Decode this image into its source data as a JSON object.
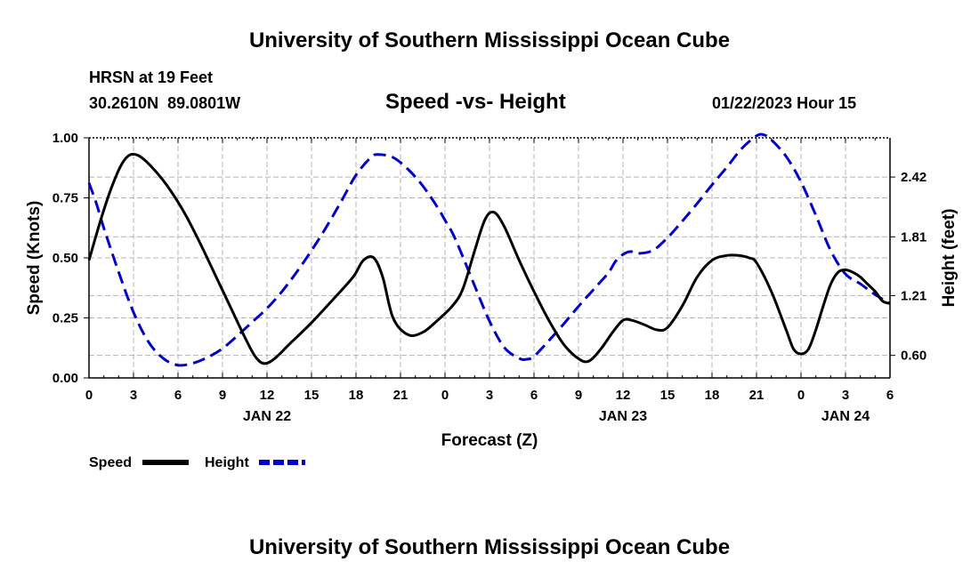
{
  "header": {
    "title": "University of Southern Mississippi Ocean Cube",
    "station_line": "HRSN at 19 Feet",
    "coords_line": "30.2610N  89.0801W",
    "chart_subtitle": "Speed -vs- Height",
    "timestamp": "01/22/2023 Hour 15"
  },
  "footer": {
    "title": "University of Southern Mississippi Ocean Cube"
  },
  "chart_data": {
    "type": "line",
    "title": "Speed -vs- Height",
    "xlabel": "Forecast (Z)",
    "ylabel_left": "Speed (Knots)",
    "ylabel_right": "Height (feet)",
    "xlim": [
      0,
      54
    ],
    "ylim_left": [
      0,
      1.0
    ],
    "ylim_right": [
      0.37,
      2.82
    ],
    "grid": true,
    "x_ticks": [
      0,
      3,
      6,
      9,
      12,
      15,
      18,
      21,
      24,
      27,
      30,
      33,
      36,
      39,
      42,
      45,
      48,
      51,
      54
    ],
    "x_tick_labels": [
      "0",
      "3",
      "6",
      "9",
      "12",
      "15",
      "18",
      "21",
      "0",
      "3",
      "6",
      "9",
      "12",
      "15",
      "18",
      "21",
      "0",
      "3",
      "6"
    ],
    "date_labels": [
      {
        "x": 12,
        "label": "JAN 22"
      },
      {
        "x": 36,
        "label": "JAN 23"
      },
      {
        "x": 51,
        "label": "JAN 24"
      }
    ],
    "y_left_ticks": [
      0,
      0.25,
      0.5,
      0.75,
      1.0
    ],
    "y_left_tick_labels": [
      "0.00",
      "0.25",
      "0.50",
      "0.75",
      "1.00"
    ],
    "y_right_ticks": [
      0.6,
      1.21,
      1.81,
      2.42
    ],
    "y_right_tick_labels": [
      "0.60",
      "1.21",
      "1.81",
      "2.42"
    ],
    "series": [
      {
        "name": "Speed",
        "axis": "left",
        "color": "#000000",
        "dash": "solid",
        "x": [
          0,
          0.8,
          1.5,
          2.2,
          2.8,
          3.5,
          4.5,
          5.5,
          6.5,
          7.5,
          8.5,
          9.5,
          10.5,
          11.2,
          11.8,
          12.5,
          13.5,
          15,
          16.5,
          17.8,
          18.5,
          19.2,
          19.8,
          20.5,
          21.5,
          22.5,
          23.5,
          24.5,
          25.2,
          26,
          26.7,
          27.3,
          28,
          29,
          30,
          31,
          32,
          33,
          33.7,
          34.5,
          35.3,
          36,
          36.6,
          37.5,
          38.3,
          39,
          40,
          41,
          42,
          43,
          43.8,
          44.5,
          45,
          46,
          47,
          47.5,
          48,
          48.5,
          49,
          49.5,
          50,
          50.5,
          51,
          51.5,
          52,
          52.5,
          53,
          53.5,
          54
        ],
        "values": [
          0.49,
          0.66,
          0.79,
          0.89,
          0.93,
          0.92,
          0.86,
          0.78,
          0.68,
          0.56,
          0.43,
          0.3,
          0.17,
          0.09,
          0.06,
          0.08,
          0.14,
          0.23,
          0.33,
          0.42,
          0.49,
          0.5,
          0.42,
          0.25,
          0.18,
          0.19,
          0.24,
          0.3,
          0.37,
          0.53,
          0.66,
          0.69,
          0.63,
          0.49,
          0.36,
          0.24,
          0.14,
          0.08,
          0.07,
          0.12,
          0.19,
          0.24,
          0.24,
          0.22,
          0.2,
          0.21,
          0.3,
          0.42,
          0.49,
          0.51,
          0.51,
          0.5,
          0.48,
          0.36,
          0.2,
          0.12,
          0.1,
          0.12,
          0.2,
          0.3,
          0.39,
          0.44,
          0.45,
          0.44,
          0.42,
          0.39,
          0.36,
          0.32,
          0.31
        ]
      },
      {
        "name": "Height",
        "axis": "right",
        "color": "#0000cc",
        "dash": "dashed",
        "x": [
          0,
          0.5,
          1,
          2,
          3,
          4,
          5,
          6,
          7,
          8,
          9,
          10,
          11,
          12,
          13,
          14,
          15,
          16,
          17,
          18,
          19,
          19.5,
          20.5,
          21.5,
          22.5,
          23.5,
          24,
          24.5,
          25,
          26,
          27,
          28,
          29,
          29.5,
          30,
          31,
          32,
          33,
          34,
          35,
          35.5,
          36,
          36.5,
          37,
          38,
          39,
          40,
          41,
          42,
          43,
          44,
          45,
          45.5,
          46,
          47,
          48,
          49,
          50,
          51,
          52,
          53,
          54
        ],
        "values": [
          2.36,
          2.15,
          1.9,
          1.45,
          1.04,
          0.74,
          0.57,
          0.5,
          0.52,
          0.58,
          0.67,
          0.8,
          0.94,
          1.08,
          1.25,
          1.45,
          1.67,
          1.91,
          2.17,
          2.44,
          2.62,
          2.65,
          2.62,
          2.5,
          2.33,
          2.11,
          1.98,
          1.85,
          1.68,
          1.31,
          0.95,
          0.68,
          0.57,
          0.56,
          0.59,
          0.75,
          0.92,
          1.1,
          1.27,
          1.44,
          1.56,
          1.63,
          1.66,
          1.64,
          1.67,
          1.8,
          1.97,
          2.15,
          2.34,
          2.52,
          2.71,
          2.84,
          2.85,
          2.8,
          2.63,
          2.37,
          2.03,
          1.67,
          1.43,
          1.33,
          1.22,
          1.13
        ]
      }
    ],
    "legend": {
      "placement": "bottom-left",
      "entries": [
        {
          "label": "Speed",
          "color": "#000000",
          "dash": "solid"
        },
        {
          "label": "Height",
          "color": "#0000cc",
          "dash": "dashed"
        }
      ]
    }
  }
}
